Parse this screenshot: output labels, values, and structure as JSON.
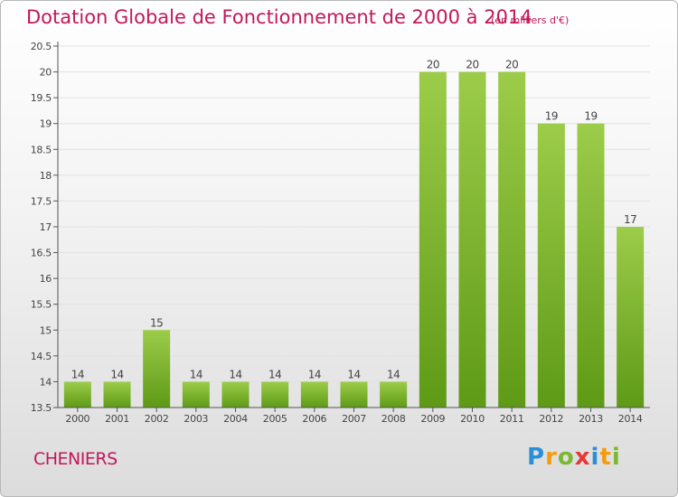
{
  "title": "Dotation Globale de Fonctionnement de 2000 à 2014",
  "subtitle": "(en milliers d'€)",
  "commune": "CHENIERS",
  "logo": {
    "text": "Proxiti",
    "letters": [
      {
        "ch": "P",
        "color": "#2b8fd6"
      },
      {
        "ch": "r",
        "color": "#f39c12"
      },
      {
        "ch": "o",
        "color": "#7cb82f"
      },
      {
        "ch": "x",
        "color": "#e53935"
      },
      {
        "ch": "i",
        "color": "#2b8fd6"
      },
      {
        "ch": "t",
        "color": "#f39c12"
      },
      {
        "ch": "i",
        "color": "#7cb82f"
      }
    ]
  },
  "colors": {
    "accent": "#c2185b",
    "bar_top": "#9ccc4a",
    "bar_bottom": "#5e9a16",
    "grid": "#e2e2e2",
    "axis": "#555555",
    "text": "#444444"
  },
  "chart_data": {
    "type": "bar",
    "title": "Dotation Globale de Fonctionnement de 2000 à 2014",
    "subtitle": "(en milliers d'€)",
    "xlabel": "",
    "ylabel": "",
    "categories": [
      "2000",
      "2001",
      "2002",
      "2003",
      "2004",
      "2005",
      "2006",
      "2007",
      "2008",
      "2009",
      "2010",
      "2011",
      "2012",
      "2013",
      "2014"
    ],
    "values": [
      14,
      14,
      15,
      14,
      14,
      14,
      14,
      14,
      14,
      20,
      20,
      20,
      19,
      19,
      17
    ],
    "value_labels": [
      "14",
      "14",
      "15",
      "14",
      "14",
      "14",
      "14",
      "14",
      "14",
      "20",
      "20",
      "20",
      "19",
      "19",
      "17"
    ],
    "ylim": [
      13.5,
      20.5
    ],
    "yticks": [
      13.5,
      14,
      14.5,
      15,
      15.5,
      16,
      16.5,
      17,
      17.5,
      18,
      18.5,
      19,
      19.5,
      20,
      20.5
    ],
    "ytick_labels": [
      "13.5",
      "14",
      "14.5",
      "15",
      "15.5",
      "16",
      "16.5",
      "17",
      "17.5",
      "18",
      "18.5",
      "19",
      "19.5",
      "20",
      "20.5"
    ],
    "grid": true,
    "legend": "none"
  }
}
